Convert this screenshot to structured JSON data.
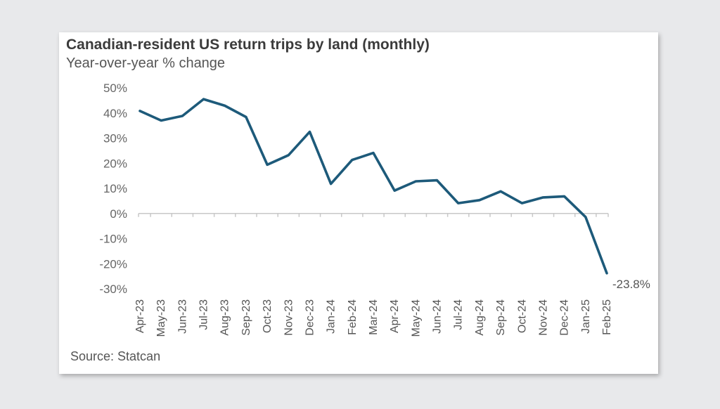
{
  "chart_data": {
    "type": "line",
    "title": "Canadian-resident US return trips by land (monthly)",
    "subtitle": "Year-over-year % change",
    "source": "Source: Statcan",
    "x": [
      "Apr-23",
      "May-23",
      "Jun-23",
      "Jul-23",
      "Aug-23",
      "Sep-23",
      "Oct-23",
      "Nov-23",
      "Dec-23",
      "Jan-24",
      "Feb-24",
      "Mar-24",
      "Apr-24",
      "May-24",
      "Jun-24",
      "Jul-24",
      "Aug-24",
      "Sep-24",
      "Oct-24",
      "Nov-24",
      "Dec-24",
      "Jan-25",
      "Feb-25"
    ],
    "series": [
      {
        "values": [
          40.8,
          37.0,
          38.8,
          45.5,
          42.9,
          38.4,
          19.4,
          23.2,
          32.5,
          11.8,
          21.3,
          24.1,
          9.1,
          12.8,
          13.2,
          4.1,
          5.3,
          8.8,
          4.1,
          6.4,
          6.8,
          -1.4,
          -23.8
        ]
      }
    ],
    "ylim": [
      -30,
      50
    ],
    "yticks": [
      50,
      40,
      30,
      20,
      10,
      0,
      -10,
      -20,
      -30
    ],
    "ytick_labels": [
      "50%",
      "40%",
      "30%",
      "20%",
      "10%",
      "0%",
      "-10%",
      "-20%",
      "-30%"
    ],
    "annotation": "-23.8%",
    "line_color": "#1d5a7a",
    "grid": false
  }
}
